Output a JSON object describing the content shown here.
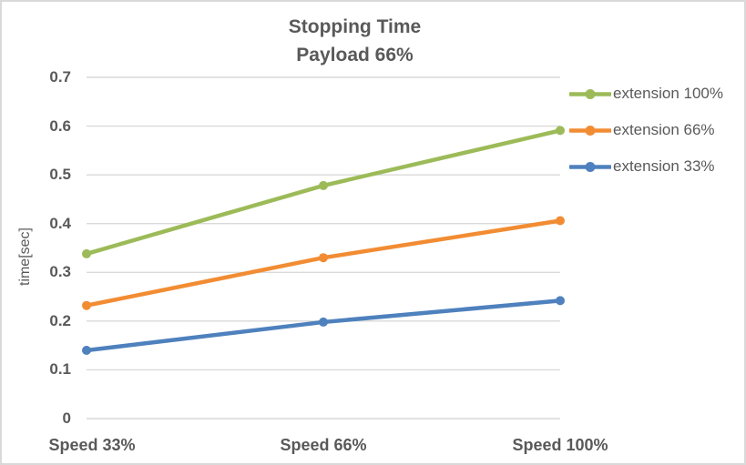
{
  "frame": {
    "background": "#FFFFFF",
    "border_color": "#D9D9D9",
    "text_color": "#595959"
  },
  "chart_data": {
    "type": "line",
    "title": "Stopping Time",
    "subtitle": "Payload 66%",
    "ylabel": "time[sec]",
    "xlabel": "",
    "categories": [
      "Speed 33%",
      "Speed 66%",
      "Speed 100%"
    ],
    "series": [
      {
        "name": "extension 100%",
        "color": "#9CBB58",
        "values": [
          0.338,
          0.478,
          0.591
        ]
      },
      {
        "name": "extension 66%",
        "color": "#F28C33",
        "values": [
          0.232,
          0.33,
          0.406
        ]
      },
      {
        "name": "extension 33%",
        "color": "#4E81BD",
        "values": [
          0.14,
          0.198,
          0.242
        ]
      }
    ],
    "ylim": [
      0,
      0.7
    ],
    "ytick_step": 0.1,
    "yticks": [
      "0",
      "0.1",
      "0.2",
      "0.3",
      "0.4",
      "0.5",
      "0.6",
      "0.7"
    ],
    "grid": true,
    "gridline_color": "#D9D9D9",
    "legend_position": "right",
    "marker": "circle"
  }
}
